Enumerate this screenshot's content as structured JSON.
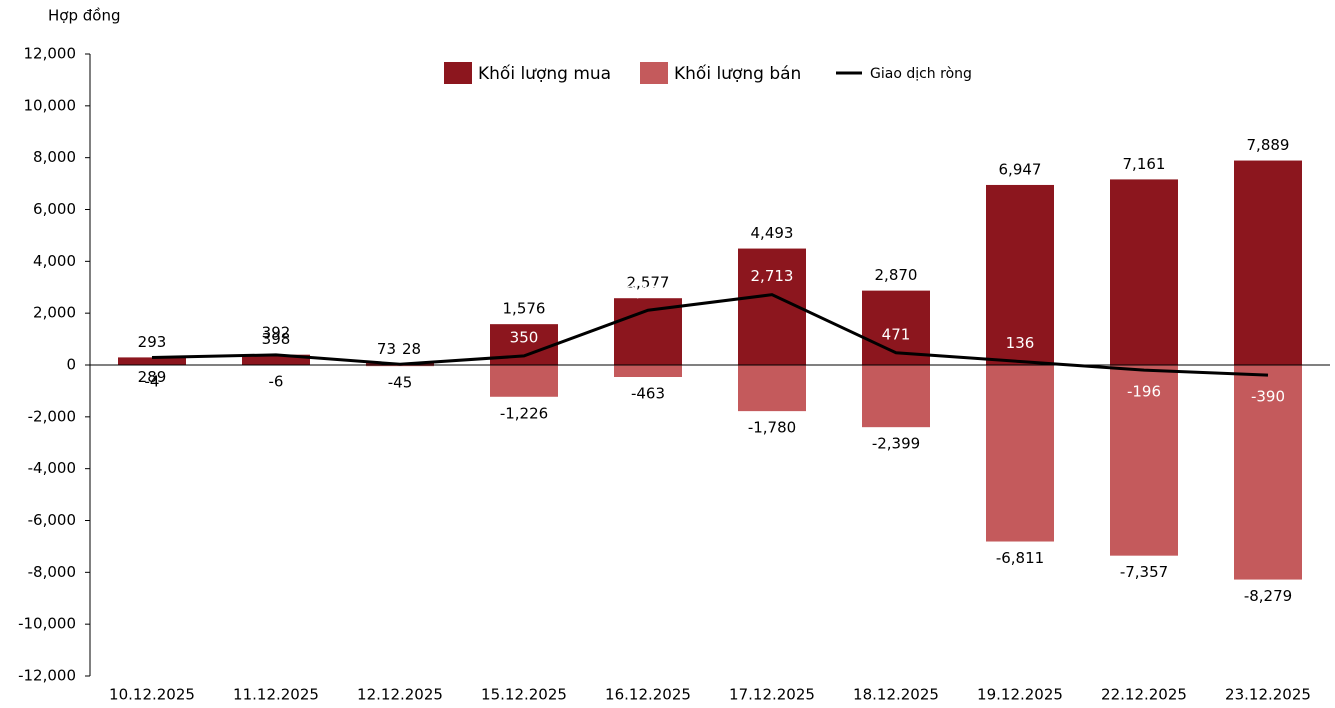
{
  "chart_data": {
    "type": "bar",
    "y_label": "Hợp đồng",
    "categories": [
      "10.12.2025",
      "11.12.2025",
      "12.12.2025",
      "15.12.2025",
      "16.12.2025",
      "17.12.2025",
      "18.12.2025",
      "19.12.2025",
      "22.12.2025",
      "23.12.2025"
    ],
    "series": [
      {
        "name": "Khối lượng mua",
        "color": "#8c161e",
        "type": "bar",
        "values": [
          293,
          398,
          73,
          1576,
          2577,
          4493,
          2870,
          6947,
          7161,
          7889
        ],
        "value_labels": [
          "293",
          "398",
          "73",
          "1,576",
          "2,577",
          "4,493",
          "2,870",
          "6,947",
          "7,161",
          "7,889"
        ]
      },
      {
        "name": "Khối lượng bán",
        "color": "#c45a5c",
        "type": "bar",
        "values": [
          -4,
          -6,
          -45,
          -1226,
          -463,
          -1780,
          -2399,
          -6811,
          -7357,
          -8279
        ],
        "value_labels": [
          "-4",
          "-6",
          "-45",
          "-1,226",
          "-463",
          "-1,780",
          "-2,399",
          "-6,811",
          "-7,357",
          "-8,279"
        ]
      },
      {
        "name": "Giao dịch ròng",
        "color": "#000000",
        "type": "line",
        "values": [
          289,
          392,
          28,
          350,
          2114,
          2713,
          471,
          136,
          -196,
          -390
        ],
        "value_labels": [
          "289",
          "392",
          "28",
          "350",
          "2,114",
          "2,713",
          "471",
          "136",
          "-196",
          "-390"
        ]
      }
    ],
    "ylim": [
      -12000,
      12000
    ],
    "yticks": [
      {
        "value": -12000,
        "label": "-12,000"
      },
      {
        "value": -10000,
        "label": "-10,000"
      },
      {
        "value": -8000,
        "label": "-8,000"
      },
      {
        "value": -6000,
        "label": "-6,000"
      },
      {
        "value": -4000,
        "label": "-4,000"
      },
      {
        "value": -2000,
        "label": "-2,000"
      },
      0,
      {
        "value": 2000,
        "label": "2,000"
      },
      {
        "value": 4000,
        "label": "4,000"
      },
      {
        "value": 6000,
        "label": "6,000"
      },
      {
        "value": 8000,
        "label": "8,000"
      },
      {
        "value": 10000,
        "label": "10,000"
      },
      {
        "value": 12000,
        "label": "12,000"
      }
    ],
    "legend": "top"
  }
}
